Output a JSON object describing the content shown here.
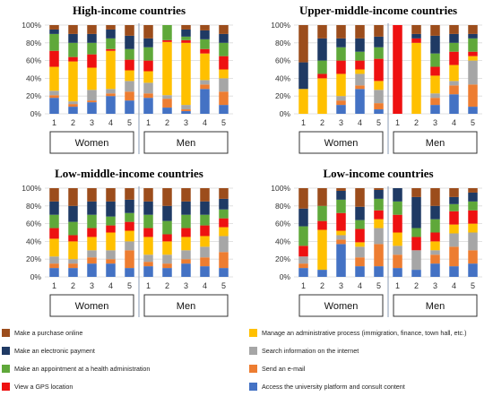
{
  "colors": {
    "Make a purchase online": "#9c4d1c",
    "Make an electronic payment": "#1f3a64",
    "Make an appointment at a health administration": "#5fa83a",
    "View a GPS location": "#ee1111",
    "Manage an administrative process (immigration, finance, town hall, etc.)": "#ffc000",
    "Search information on the internet": "#a6a6a6",
    "Send an e-mail": "#ed7d31",
    "Access the university platform and consult content": "#4472c4"
  },
  "legend": [
    "Make a purchase online",
    "Manage an administrative process (immigration, finance, town hall, etc.)",
    "Make an electronic payment",
    "Search information on the internet",
    "Make an appointment at a health administration",
    "Send an e-mail",
    "View a GPS location",
    "Access the university platform and consult content"
  ],
  "chart_data": [
    {
      "type": "bar",
      "stacked": true,
      "title": "High-income countries",
      "categories": [
        "1",
        "2",
        "3",
        "4",
        "5",
        "1",
        "2",
        "3",
        "4",
        "5"
      ],
      "groups": [
        "Women",
        "Men"
      ],
      "ylim": [
        0,
        100
      ],
      "yticks": [
        "0%",
        "20%",
        "40%",
        "60%",
        "80%",
        "100%"
      ],
      "series": [
        {
          "name": "Access the university platform and consult content",
          "values": [
            18,
            8,
            13,
            20,
            15,
            18,
            7,
            3,
            28,
            10
          ]
        },
        {
          "name": "Send an e-mail",
          "values": [
            3,
            3,
            2,
            3,
            10,
            5,
            10,
            2,
            5,
            15
          ]
        },
        {
          "name": "Search information on the internet",
          "values": [
            5,
            3,
            12,
            5,
            12,
            12,
            4,
            5,
            5,
            15
          ]
        },
        {
          "name": "Manage an administrative process (immigration, finance, town hall, etc.)",
          "values": [
            27,
            45,
            25,
            43,
            12,
            13,
            60,
            70,
            30,
            10
          ]
        },
        {
          "name": "View a GPS location",
          "values": [
            18,
            5,
            15,
            2,
            12,
            12,
            2,
            3,
            5,
            15
          ]
        },
        {
          "name": "Make an appointment at a health administration",
          "values": [
            19,
            16,
            13,
            12,
            12,
            15,
            17,
            4,
            11,
            15
          ]
        },
        {
          "name": "Make an electronic payment",
          "values": [
            5,
            10,
            10,
            10,
            15,
            10,
            0,
            8,
            10,
            10
          ]
        },
        {
          "name": "Make a purchase online",
          "values": [
            5,
            10,
            10,
            5,
            12,
            15,
            0,
            5,
            6,
            10
          ]
        }
      ]
    },
    {
      "type": "bar",
      "stacked": true,
      "title": "Upper-middle-income countries",
      "categories": [
        "1",
        "2",
        "3",
        "4",
        "5",
        "1",
        "2",
        "3",
        "4",
        "5"
      ],
      "groups": [
        "Women",
        "Men"
      ],
      "ylim": [
        0,
        100
      ],
      "yticks": [
        "0%",
        "20%",
        "40%",
        "60%",
        "80%",
        "100%"
      ],
      "series": [
        {
          "name": "Access the university platform and consult content",
          "values": [
            0,
            0,
            10,
            28,
            5,
            0,
            0,
            10,
            22,
            8
          ]
        },
        {
          "name": "Send an e-mail",
          "values": [
            0,
            0,
            5,
            4,
            7,
            0,
            0,
            8,
            10,
            25
          ]
        },
        {
          "name": "Search information on the internet",
          "values": [
            0,
            0,
            5,
            13,
            15,
            0,
            0,
            5,
            5,
            27
          ]
        },
        {
          "name": "Manage an administrative process (immigration, finance, town hall, etc.)",
          "values": [
            28,
            40,
            25,
            5,
            10,
            0,
            80,
            20,
            18,
            5
          ]
        },
        {
          "name": "View a GPS location",
          "values": [
            0,
            5,
            15,
            10,
            25,
            100,
            5,
            10,
            15,
            5
          ]
        },
        {
          "name": "Make an appointment at a health administration",
          "values": [
            0,
            15,
            15,
            10,
            13,
            0,
            0,
            15,
            10,
            15
          ]
        },
        {
          "name": "Make an electronic payment",
          "values": [
            30,
            25,
            10,
            15,
            12,
            0,
            5,
            20,
            10,
            5
          ]
        },
        {
          "name": "Make a purchase online",
          "values": [
            42,
            15,
            15,
            15,
            13,
            0,
            10,
            12,
            10,
            10
          ]
        }
      ]
    },
    {
      "type": "bar",
      "stacked": true,
      "title": "Low-middle-income countries",
      "categories": [
        "1",
        "2",
        "3",
        "4",
        "5",
        "1",
        "2",
        "3",
        "4",
        "5"
      ],
      "groups": [
        "Women",
        "Men"
      ],
      "ylim": [
        0,
        100
      ],
      "yticks": [
        "0%",
        "20%",
        "40%",
        "60%",
        "80%",
        "100%"
      ],
      "series": [
        {
          "name": "Access the university platform and consult content",
          "values": [
            10,
            10,
            15,
            15,
            10,
            12,
            10,
            15,
            12,
            10
          ]
        },
        {
          "name": "Send an e-mail",
          "values": [
            5,
            5,
            7,
            5,
            20,
            5,
            5,
            5,
            10,
            18
          ]
        },
        {
          "name": "Search information on the internet",
          "values": [
            8,
            5,
            8,
            10,
            10,
            8,
            10,
            10,
            12,
            18
          ]
        },
        {
          "name": "Manage an administrative process (immigration, finance, town hall, etc.)",
          "values": [
            20,
            20,
            15,
            20,
            12,
            20,
            15,
            15,
            12,
            10
          ]
        },
        {
          "name": "View a GPS location",
          "values": [
            12,
            7,
            10,
            8,
            10,
            10,
            8,
            10,
            12,
            10
          ]
        },
        {
          "name": "Make an appointment at a health administration",
          "values": [
            15,
            15,
            15,
            10,
            10,
            15,
            15,
            15,
            12,
            10
          ]
        },
        {
          "name": "Make an electronic payment",
          "values": [
            15,
            18,
            15,
            17,
            15,
            15,
            17,
            15,
            15,
            12
          ]
        },
        {
          "name": "Make a purchase online",
          "values": [
            15,
            20,
            15,
            15,
            13,
            15,
            20,
            15,
            15,
            12
          ]
        }
      ]
    },
    {
      "type": "bar",
      "stacked": true,
      "title": "Low-income countries",
      "categories": [
        "1",
        "2",
        "3",
        "4",
        "5",
        "1",
        "2",
        "3",
        "4",
        "5"
      ],
      "groups": [
        "Women",
        "Men"
      ],
      "ylim": [
        0,
        100
      ],
      "yticks": [
        "0%",
        "20%",
        "40%",
        "60%",
        "80%",
        "100%"
      ],
      "series": [
        {
          "name": "Access the university platform and consult content",
          "values": [
            10,
            8,
            37,
            12,
            12,
            10,
            8,
            15,
            12,
            15
          ]
        },
        {
          "name": "Send an e-mail",
          "values": [
            5,
            0,
            5,
            10,
            25,
            15,
            0,
            10,
            22,
            15
          ]
        },
        {
          "name": "Search information on the internet",
          "values": [
            8,
            0,
            5,
            12,
            18,
            10,
            22,
            5,
            15,
            20
          ]
        },
        {
          "name": "Manage an administrative process (immigration, finance, town hall, etc.)",
          "values": [
            0,
            45,
            5,
            5,
            10,
            15,
            0,
            10,
            10,
            10
          ]
        },
        {
          "name": "View a GPS location",
          "values": [
            12,
            10,
            20,
            15,
            10,
            20,
            15,
            10,
            15,
            15
          ]
        },
        {
          "name": "Make an appointment at a health administration",
          "values": [
            22,
            17,
            15,
            10,
            13,
            15,
            10,
            15,
            8,
            10
          ]
        },
        {
          "name": "Make an electronic payment",
          "values": [
            20,
            0,
            10,
            15,
            10,
            15,
            35,
            15,
            8,
            10
          ]
        },
        {
          "name": "Make a purchase online",
          "values": [
            23,
            20,
            3,
            21,
            2,
            0,
            10,
            20,
            10,
            5
          ]
        }
      ]
    }
  ]
}
